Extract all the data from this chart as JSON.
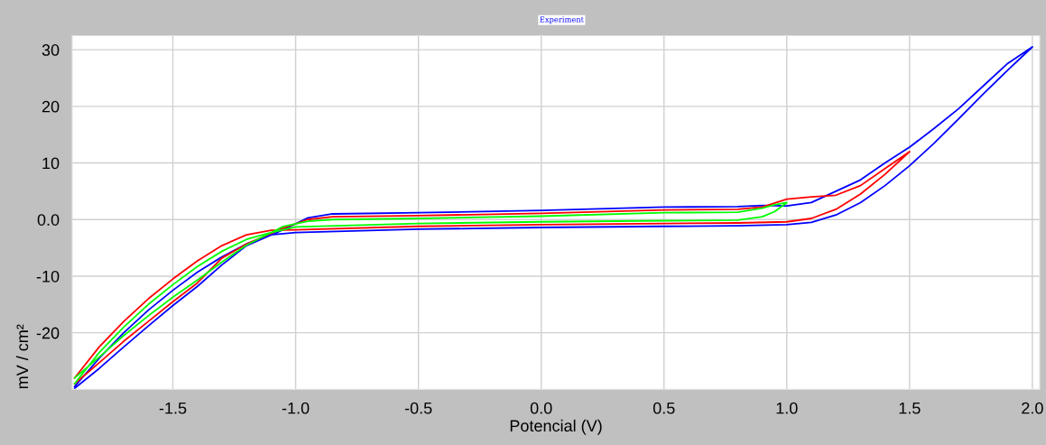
{
  "chart_data": {
    "type": "line",
    "title": "Experiment",
    "xlabel": "Potencial (V)",
    "ylabel": "mV / cm²",
    "xlim": [
      -1.91,
      2.03
    ],
    "ylim": [
      -30,
      32.5
    ],
    "xticks": [
      -1.5,
      {
        "value": -1,
        "label": "-1.0"
      },
      -0.5,
      {
        "value": 0,
        "label": "0.0"
      },
      0.5,
      {
        "value": 1,
        "label": "1.0"
      },
      1.5,
      {
        "value": 2,
        "label": "2.0"
      }
    ],
    "yticks": [
      -20,
      -10,
      {
        "value": 0,
        "label": "0.0"
      },
      10,
      20,
      30
    ],
    "grid": true,
    "line_style": "solid",
    "marker": "none",
    "series": [
      {
        "color": "#0000ff",
        "x": [
          -1.9,
          -1.8,
          -1.7,
          -1.6,
          -1.5,
          -1.4,
          -1.3,
          -1.2,
          -1.1,
          -1.0,
          -0.5,
          0,
          0.5,
          0.8,
          1.0,
          1.1,
          1.2,
          1.3,
          1.4,
          1.5,
          1.6,
          1.7,
          1.8,
          1.9,
          2.0,
          1.9,
          1.8,
          1.7,
          1.6,
          1.5,
          1.4,
          1.3,
          1.2,
          1.1,
          1.0,
          0.9,
          0.8,
          0.5,
          0,
          -0.5,
          -0.85,
          -0.95,
          -1.05,
          -1.2,
          -1.3,
          -1.4,
          -1.5,
          -1.6,
          -1.7,
          -1.8,
          -1.9
        ],
        "values": [
          -29.5,
          -24.5,
          -20,
          -16,
          -12.5,
          -9.3,
          -6.6,
          -4.3,
          -2.7,
          -2.3,
          -1.7,
          -1.4,
          -1.2,
          -1.1,
          -0.9,
          -0.5,
          0.8,
          3,
          6,
          9.5,
          13.5,
          17.8,
          22.2,
          26.4,
          30.5,
          27.6,
          23.6,
          19.6,
          16.1,
          12.8,
          10,
          7,
          5,
          3,
          2.4,
          2.5,
          2.3,
          2.2,
          1.6,
          1.2,
          1,
          0.3,
          -1.8,
          -4.6,
          -8,
          -11.8,
          -15.2,
          -18.8,
          -22.5,
          -26.3,
          -29.8
        ]
      },
      {
        "color": "#ff0000",
        "x": [
          -1.9,
          -1.8,
          -1.7,
          -1.6,
          -1.5,
          -1.4,
          -1.3,
          -1.2,
          -1.1,
          -1.0,
          -0.5,
          0,
          0.5,
          0.8,
          1.0,
          1.1,
          1.2,
          1.3,
          1.4,
          1.5,
          1.4,
          1.3,
          1.2,
          1.1,
          1.0,
          0.9,
          0.8,
          0.5,
          0,
          -0.5,
          -0.85,
          -0.95,
          -1.05,
          -1.2,
          -1.3,
          -1.4,
          -1.5,
          -1.6,
          -1.7,
          -1.8,
          -1.9
        ],
        "values": [
          -28,
          -22.5,
          -18,
          -14,
          -10.5,
          -7.3,
          -4.6,
          -2.7,
          -1.9,
          -1.8,
          -1.2,
          -0.9,
          -0.7,
          -0.6,
          -0.4,
          0.2,
          1.8,
          4.5,
          8,
          12,
          9,
          6,
          4.3,
          4,
          3.6,
          2.2,
          1.8,
          1.7,
          1.1,
          0.7,
          0.5,
          0,
          -1.5,
          -4.3,
          -6.8,
          -11.2,
          -14.5,
          -18,
          -21.5,
          -25.3,
          -29
        ]
      },
      {
        "color": "#00ff00",
        "x": [
          -1.9,
          -1.8,
          -1.7,
          -1.6,
          -1.5,
          -1.4,
          -1.3,
          -1.2,
          -1.1,
          -1.0,
          -0.5,
          0,
          0.5,
          0.8,
          0.9,
          0.95,
          1.0,
          0.95,
          0.9,
          0.8,
          0.5,
          0,
          -0.5,
          -0.85,
          -0.95,
          -1.05,
          -1.2,
          -1.3,
          -1.4,
          -1.5,
          -1.6,
          -1.7,
          -1.8,
          -1.9
        ],
        "values": [
          -29,
          -23.5,
          -19,
          -15,
          -11.5,
          -8.3,
          -5.6,
          -3.5,
          -2.3,
          -1.3,
          -0.7,
          -0.4,
          -0.2,
          -0.1,
          0.5,
          1.4,
          3,
          2.6,
          2,
          1.3,
          1.2,
          0.6,
          0.2,
          0,
          -0.3,
          -1.2,
          -4.5,
          -7.5,
          -10.7,
          -13.7,
          -17,
          -20.5,
          -24.3,
          -28
        ]
      }
    ]
  }
}
